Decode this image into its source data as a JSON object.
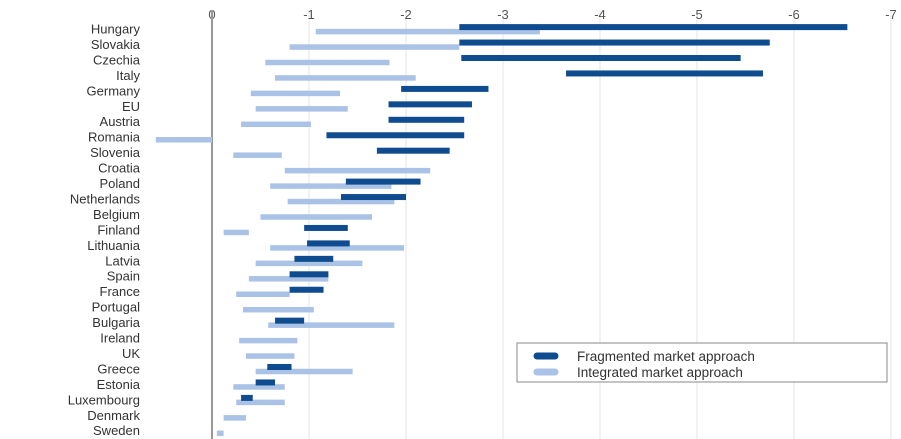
{
  "chart_data": {
    "type": "bar",
    "title": "",
    "xlabel": "",
    "ylabel": "",
    "x_ticks": [
      "0",
      "-1",
      "-2",
      "-3",
      "-4",
      "-5",
      "-6",
      "-7"
    ],
    "x_tick_values": [
      0,
      -1,
      -2,
      -3,
      -4,
      -5,
      -6,
      -7
    ],
    "xlim": [
      0.6,
      -7
    ],
    "grid": "vertical",
    "legend_position": "bottom-right",
    "colors": {
      "fragmented": "#0f4c8f",
      "integrated": "#a9c2e6",
      "axis": "#999999",
      "grid": "#e6e6e6"
    },
    "categories": [
      "Hungary",
      "Slovakia",
      "Czechia",
      "Italy",
      "Germany",
      "EU",
      "Austria",
      "Romania",
      "Slovenia",
      "Croatia",
      "Poland",
      "Netherlands",
      "Belgium",
      "Finland",
      "Lithuania",
      "Latvia",
      "Spain",
      "France",
      "Portugal",
      "Bulgaria",
      "Ireland",
      "UK",
      "Greece",
      "Estonia",
      "Luxembourg",
      "Denmark",
      "Sweden"
    ],
    "series": [
      {
        "name": "Fragmented market approach",
        "ranges": [
          [
            -2.55,
            -6.55
          ],
          [
            -2.55,
            -5.75
          ],
          [
            -2.57,
            -5.45
          ],
          [
            -3.65,
            -5.68
          ],
          [
            -1.95,
            -2.85
          ],
          [
            -1.82,
            -2.68
          ],
          [
            -1.82,
            -2.6
          ],
          [
            -1.18,
            -2.6
          ],
          [
            -1.7,
            -2.45
          ],
          null,
          [
            -1.38,
            -2.15
          ],
          [
            -1.33,
            -2.0
          ],
          null,
          [
            -0.95,
            -1.4
          ],
          [
            -0.98,
            -1.42
          ],
          [
            -0.85,
            -1.25
          ],
          [
            -0.8,
            -1.2
          ],
          [
            -0.8,
            -1.15
          ],
          null,
          [
            -0.65,
            -0.95
          ],
          null,
          null,
          [
            -0.57,
            -0.82
          ],
          [
            -0.45,
            -0.65
          ],
          [
            -0.3,
            -0.42
          ],
          null,
          null
        ]
      },
      {
        "name": "Integrated market approach",
        "ranges": [
          [
            -1.07,
            -3.38
          ],
          [
            -0.8,
            -2.55
          ],
          [
            -0.55,
            -1.83
          ],
          [
            -0.65,
            -2.1
          ],
          [
            -0.4,
            -1.32
          ],
          [
            -0.45,
            -1.4
          ],
          [
            -0.3,
            -1.02
          ],
          [
            0.58,
            0.0
          ],
          [
            -0.22,
            -0.72
          ],
          [
            -0.75,
            -2.25
          ],
          [
            -0.6,
            -1.85
          ],
          [
            -0.78,
            -1.88
          ],
          [
            -0.5,
            -1.65
          ],
          [
            -0.12,
            -0.38
          ],
          [
            -0.6,
            -1.98
          ],
          [
            -0.45,
            -1.55
          ],
          [
            -0.38,
            -1.2
          ],
          [
            -0.25,
            -0.8
          ],
          [
            -0.32,
            -1.05
          ],
          [
            -0.58,
            -1.88
          ],
          [
            -0.28,
            -0.88
          ],
          [
            -0.35,
            -0.85
          ],
          [
            -0.45,
            -1.45
          ],
          [
            -0.22,
            -0.75
          ],
          [
            -0.25,
            -0.75
          ],
          [
            -0.12,
            -0.35
          ],
          [
            -0.05,
            -0.12
          ]
        ]
      }
    ]
  }
}
